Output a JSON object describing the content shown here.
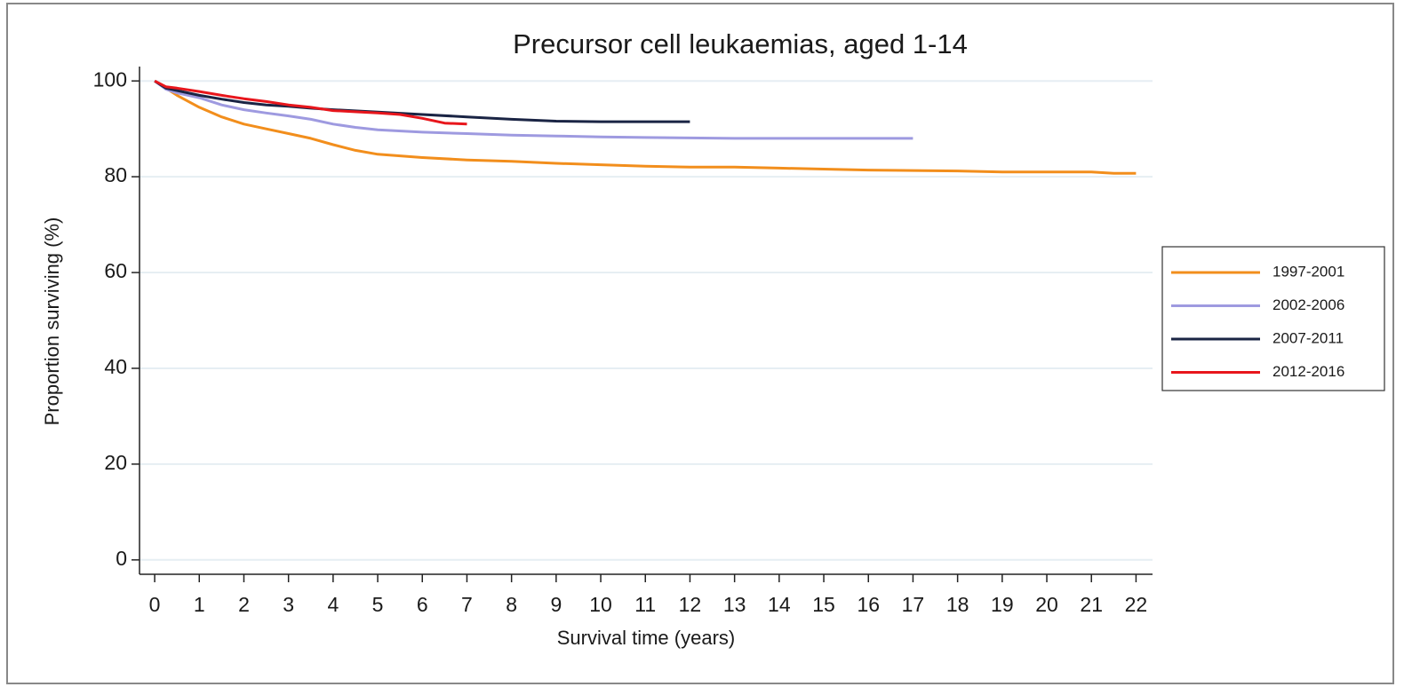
{
  "chart_data": {
    "type": "line",
    "title": "Precursor cell leukaemias, aged 1-14",
    "x_label": "Survival time (years)",
    "y_label": "Proportion surviving (%)",
    "xlim": [
      -0.34,
      22.37
    ],
    "ylim": [
      -3,
      103
    ],
    "xticks": [
      0,
      1,
      2,
      3,
      4,
      5,
      6,
      7,
      8,
      9,
      10,
      11,
      12,
      13,
      14,
      15,
      16,
      17,
      18,
      19,
      20,
      21,
      22
    ],
    "yticks": [
      0,
      20,
      40,
      60,
      80,
      100
    ],
    "grid": true,
    "legend": "right",
    "series": [
      {
        "name": "1997-2001",
        "color": "#f28e1c",
        "x": [
          0,
          0.25,
          0.5,
          1,
          1.5,
          2,
          2.5,
          3,
          3.5,
          4,
          4.5,
          5,
          6,
          7,
          8,
          9,
          10,
          11,
          12,
          13,
          14,
          15,
          16,
          17,
          18,
          19,
          20,
          21,
          21.5,
          22
        ],
        "values": [
          100,
          98.5,
          97,
          94.5,
          92.5,
          91,
          90,
          89,
          88,
          86.7,
          85.5,
          84.7,
          84,
          83.5,
          83.2,
          82.8,
          82.5,
          82.2,
          82,
          82,
          81.8,
          81.6,
          81.4,
          81.3,
          81.2,
          81,
          81,
          81,
          80.7,
          80.7
        ]
      },
      {
        "name": "2002-2006",
        "color": "#9e9ae0",
        "x": [
          0,
          0.25,
          0.5,
          1,
          1.5,
          2,
          2.5,
          3,
          3.5,
          4,
          4.5,
          5,
          6,
          7,
          8,
          9,
          10,
          11,
          12,
          13,
          14,
          15,
          16,
          17
        ],
        "values": [
          100,
          98.3,
          97.5,
          96.5,
          95,
          94,
          93.3,
          92.7,
          92,
          91,
          90.3,
          89.8,
          89.3,
          89,
          88.7,
          88.5,
          88.3,
          88.2,
          88.1,
          88,
          88,
          88,
          88,
          88
        ]
      },
      {
        "name": "2007-2011",
        "color": "#1a2444",
        "x": [
          0,
          0.25,
          0.5,
          1,
          1.5,
          2,
          2.5,
          3,
          3.5,
          4,
          5,
          6,
          7,
          8,
          9,
          10,
          11,
          12
        ],
        "values": [
          100,
          98.5,
          98,
          97,
          96.2,
          95.5,
          95,
          94.7,
          94.3,
          94,
          93.5,
          93,
          92.5,
          92,
          91.6,
          91.5,
          91.5,
          91.5
        ]
      },
      {
        "name": "2012-2016",
        "color": "#e8161c",
        "x": [
          0,
          0.25,
          0.5,
          1,
          1.5,
          2,
          2.5,
          3,
          3.5,
          4,
          5,
          5.5,
          6,
          6.5,
          7
        ],
        "values": [
          100,
          98.8,
          98.5,
          97.8,
          97,
          96.3,
          95.7,
          95,
          94.5,
          93.8,
          93.3,
          93,
          92.2,
          91.2,
          91
        ]
      }
    ]
  }
}
